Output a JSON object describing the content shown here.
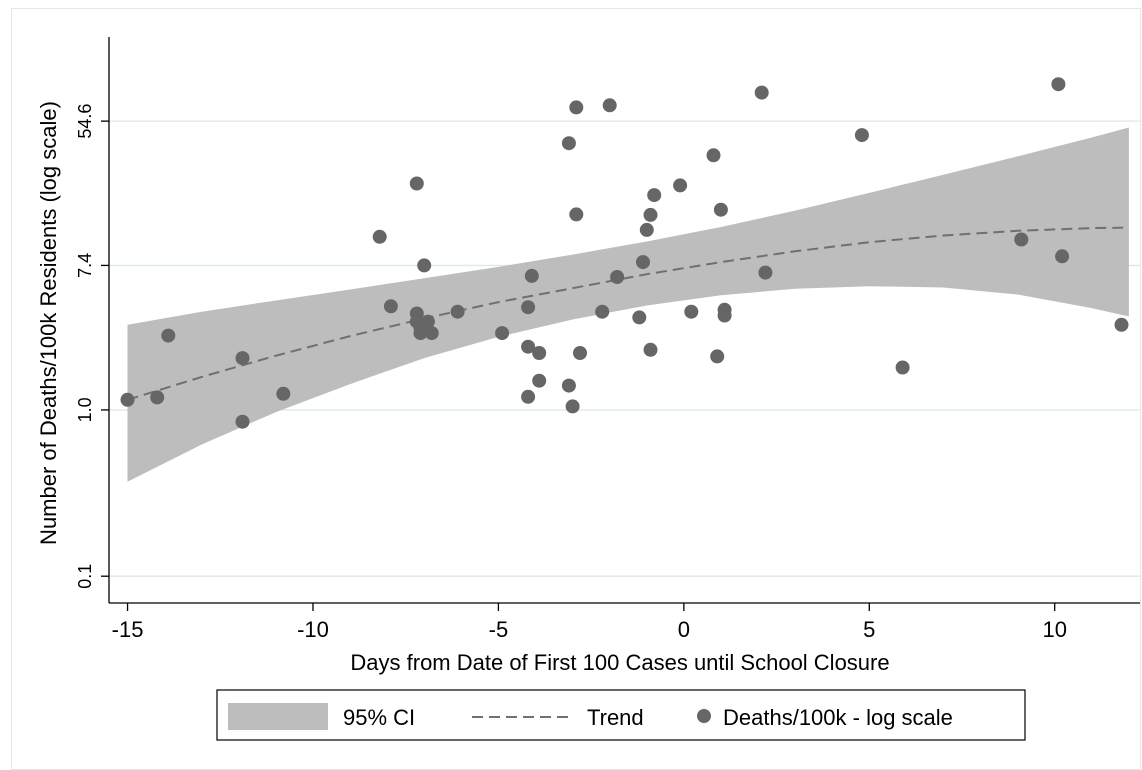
{
  "chart_data": {
    "type": "scatter",
    "xlabel": "Days from Date of First 100 Cases until School Closure",
    "ylabel": "Number of Deaths/100k Residents (log scale)",
    "xlim": [
      -15.5,
      12.3
    ],
    "ylim": [
      0.069,
      175
    ],
    "y_scale": "log",
    "grid": "horizontal",
    "legend_position": "bottom",
    "x_ticks": [
      -15,
      -10,
      -5,
      0,
      5,
      10
    ],
    "y_ticks": [
      {
        "value": 0.1,
        "label": "0.1"
      },
      {
        "value": 1.0,
        "label": "1.0"
      },
      {
        "value": 7.4,
        "label": "7.4"
      },
      {
        "value": 54.6,
        "label": "54.6"
      }
    ],
    "legend": {
      "ci_label": "95% CI",
      "trend_label": "Trend",
      "points_label": "Deaths/100k - log scale"
    },
    "colors": {
      "ci": "#bdbdbd",
      "trend": "#707070",
      "points": "#666666",
      "grid": "#d9ebe9"
    },
    "ci_band": {
      "x": [
        -15,
        -13,
        -11,
        -9,
        -7,
        -5,
        -3,
        -1,
        1,
        3,
        5,
        7,
        9,
        11,
        12
      ],
      "lower": [
        0.37,
        0.62,
        0.97,
        1.43,
        2.05,
        2.75,
        3.5,
        4.25,
        4.9,
        5.35,
        5.55,
        5.45,
        4.95,
        4.1,
        3.65
      ],
      "upper": [
        3.25,
        3.9,
        4.55,
        5.3,
        6.2,
        7.25,
        8.6,
        10.3,
        12.6,
        15.8,
        20.2,
        26.0,
        33.5,
        43.5,
        50.0
      ]
    },
    "trend": {
      "x": [
        -15,
        -13,
        -11,
        -9,
        -7,
        -5,
        -3,
        -1,
        1,
        3,
        5,
        7,
        9,
        11,
        12
      ],
      "y": [
        1.15,
        1.58,
        2.12,
        2.78,
        3.55,
        4.45,
        5.4,
        6.55,
        7.75,
        9.0,
        10.2,
        11.2,
        11.95,
        12.4,
        12.5
      ]
    },
    "series": [
      {
        "x": [
          -15.0,
          -14.2,
          -13.9,
          -11.9,
          -11.9,
          -10.8,
          -8.2,
          -7.9,
          -7.2,
          -7.2,
          -7.2,
          -7.1,
          -7.1,
          -7.0,
          -6.9,
          -6.8,
          -6.1,
          -4.9,
          -4.2,
          -4.2,
          -4.2,
          -4.1,
          -3.9,
          -3.9,
          -3.1,
          -3.1,
          -3.0,
          -2.9,
          -2.8,
          -2.9,
          -2.2,
          -2.0,
          -1.8,
          -1.2,
          -1.1,
          -1.0,
          -0.9,
          -0.9,
          -0.8,
          -0.1,
          0.2,
          0.8,
          0.9,
          1.0,
          1.1,
          1.1,
          2.1,
          2.2,
          4.8,
          5.9,
          9.1,
          10.1,
          10.2,
          11.8
        ],
        "y": [
          1.15,
          1.19,
          2.8,
          2.05,
          0.85,
          1.25,
          11.0,
          4.2,
          23.0,
          3.8,
          3.4,
          3.1,
          2.9,
          7.4,
          3.4,
          2.9,
          3.9,
          2.9,
          2.4,
          4.15,
          1.2,
          6.4,
          2.2,
          1.5,
          40.2,
          1.4,
          1.05,
          15.0,
          2.2,
          66.0,
          3.9,
          68.0,
          6.3,
          3.6,
          7.75,
          12.1,
          14.9,
          2.3,
          19.6,
          22.4,
          3.9,
          34.0,
          2.1,
          16.0,
          4.0,
          3.7,
          81.0,
          6.7,
          45.0,
          1.8,
          10.6,
          91.0,
          8.4,
          3.25
        ]
      }
    ]
  }
}
